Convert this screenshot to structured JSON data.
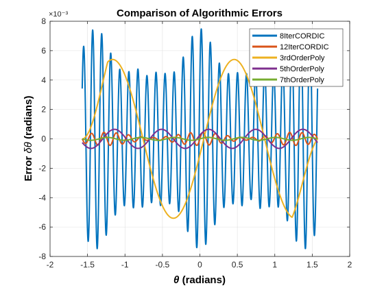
{
  "chart_data": {
    "type": "line",
    "title": "Comparison of Algorithmic Errors",
    "xlabel_symbol": "θ",
    "xlabel_text": " (radians)",
    "ylabel_prefix": "Error ",
    "ylabel_symbol": "δθ",
    "ylabel_suffix": " (radians)",
    "y_exponent_label": "×10⁻³",
    "xlim": [
      -2,
      2
    ],
    "ylim": [
      -8,
      8
    ],
    "x_ticks": [
      -2,
      -1.5,
      -1,
      -0.5,
      0,
      0.5,
      1,
      1.5,
      2
    ],
    "x_tick_labels": [
      "-2",
      "-1.5",
      "-1",
      "-0.5",
      "0",
      "0.5",
      "1",
      "1.5",
      "2"
    ],
    "y_ticks": [
      -8,
      -6,
      -4,
      -2,
      0,
      2,
      4,
      6,
      8
    ],
    "y_tick_labels": [
      "-8",
      "-6",
      "-4",
      "-2",
      "0",
      "2",
      "4",
      "6",
      "8"
    ],
    "grid": true,
    "legend_position": "top-right",
    "x_range": [
      -1.5708,
      1.5708
    ],
    "series": [
      {
        "name": "8IterCORDIC",
        "color": "#0072BD",
        "model": "cordic",
        "amplitude": 7.5,
        "line_width": 2
      },
      {
        "name": "12IterCORDIC",
        "color": "#D95319",
        "model": "cordic12",
        "amplitude": 0.45,
        "line_width": 2
      },
      {
        "name": "3rdOrderPoly",
        "color": "#EDB120",
        "model": "poly3",
        "amplitude": 5.4,
        "line_width": 2
      },
      {
        "name": "5thOrderPoly",
        "color": "#7E2F8E",
        "model": "poly5",
        "amplitude": 0.65,
        "line_width": 2
      },
      {
        "name": "7thOrderPoly",
        "color": "#77AC30",
        "model": "poly7",
        "amplitude": 0.1,
        "line_width": 2
      }
    ]
  }
}
